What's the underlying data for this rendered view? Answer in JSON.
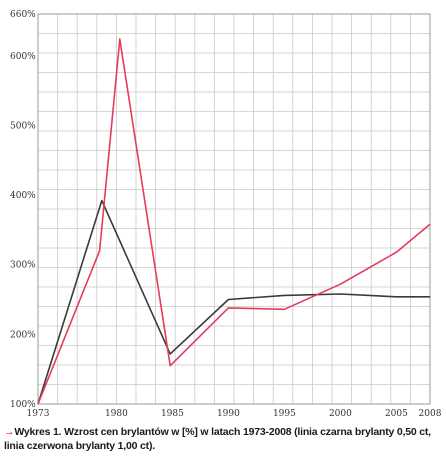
{
  "chart_data": {
    "type": "line",
    "x": [
      1973,
      1979,
      1985,
      1990,
      1995,
      2000,
      2005,
      2008
    ],
    "xticks": [
      "1973",
      "1980",
      "1985",
      "1990",
      "1995",
      "2000",
      "2005",
      "2008"
    ],
    "xtick_values": [
      1973,
      1980,
      1985,
      1990,
      1995,
      2000,
      2005,
      2008
    ],
    "yticks": [
      "100%",
      "200%",
      "300%",
      "400%",
      "500%",
      "600%",
      "660%"
    ],
    "ytick_values": [
      100,
      200,
      300,
      400,
      500,
      600,
      660
    ],
    "xlim": [
      1973,
      2008
    ],
    "ylim": [
      100,
      660
    ],
    "grid": true,
    "series": [
      {
        "color": "#3a3a3a",
        "x": [
          1973,
          1978.7,
          1984.8,
          1990,
          1995,
          2000,
          2005,
          2008
        ],
        "values": [
          100,
          392,
          172,
          250,
          256,
          258,
          254,
          254
        ]
      },
      {
        "color": "#e63c5c",
        "x": [
          1973,
          1978.5,
          1980.3,
          1984.8,
          1990,
          1995,
          2000,
          2005,
          2008
        ],
        "values": [
          100,
          320,
          624,
          155,
          238,
          236,
          272,
          318,
          358
        ]
      }
    ]
  },
  "caption": {
    "arrow": "→",
    "text": "Wykres 1. Wzrost cen brylantów w [%] w latach 1973-2008 (linia czarna brylanty 0,50 ct, linia czerwona brylanty 1,00 ct)."
  }
}
